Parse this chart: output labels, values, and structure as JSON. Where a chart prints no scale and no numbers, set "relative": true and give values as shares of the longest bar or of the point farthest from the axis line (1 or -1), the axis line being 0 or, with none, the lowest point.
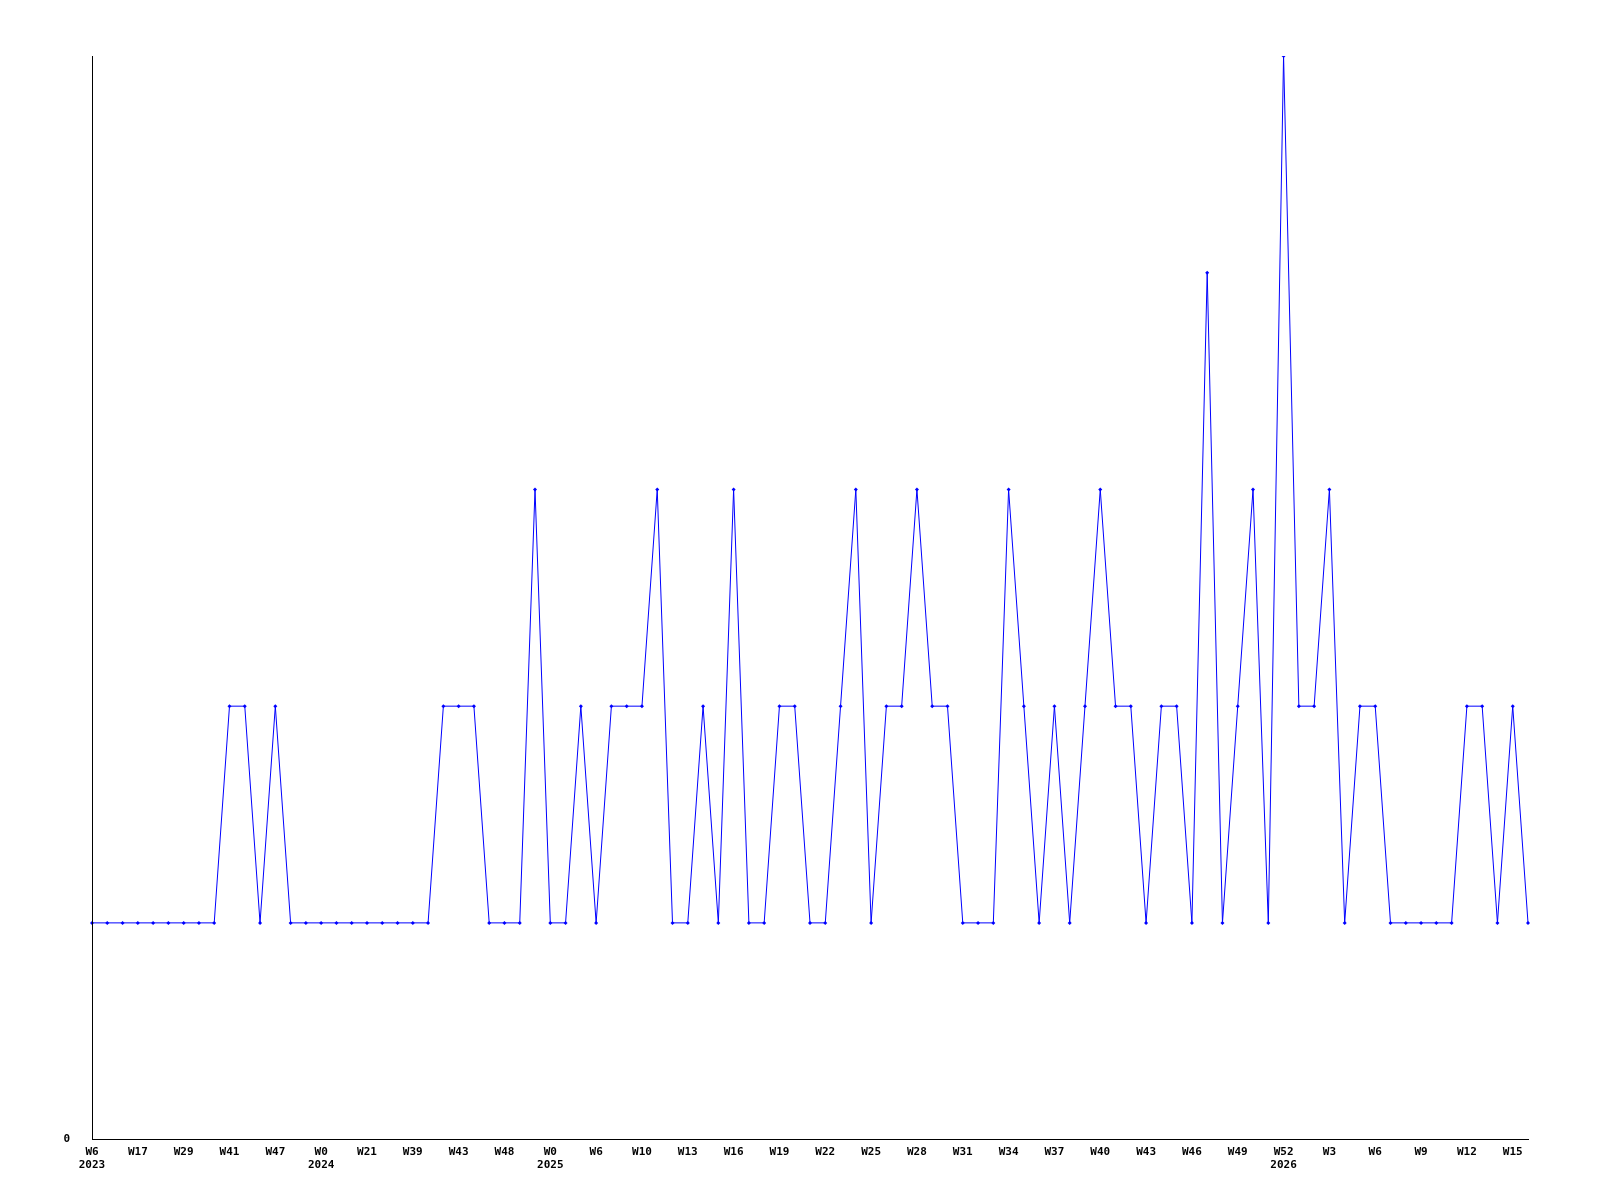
{
  "chart_data": {
    "type": "line",
    "relative": true,
    "categories": [
      "W6\n2023",
      null,
      null,
      "W17",
      null,
      null,
      "W29",
      null,
      null,
      "W41",
      null,
      null,
      "W47",
      null,
      null,
      "W0\n2024",
      null,
      null,
      "W21",
      null,
      null,
      "W39",
      null,
      null,
      "W43",
      null,
      null,
      "W48",
      null,
      null,
      "W0\n2025",
      null,
      null,
      "W6",
      null,
      null,
      "W10",
      null,
      null,
      "W13",
      null,
      null,
      "W16",
      null,
      null,
      "W19",
      null,
      null,
      "W22",
      null,
      null,
      "W25",
      null,
      null,
      "W28",
      null,
      null,
      "W31",
      null,
      null,
      "W34",
      null,
      null,
      "W37",
      null,
      null,
      "W40",
      null,
      null,
      "W43",
      null,
      null,
      "W46",
      null,
      null,
      "W49",
      null,
      null,
      "W52\n2026",
      null,
      null,
      "W3",
      null,
      null,
      "W6",
      null,
      null,
      "W9",
      null,
      null,
      "W12",
      null,
      null,
      "W15",
      null
    ],
    "series": [
      {
        "color": "#0000ff",
        "values": [
          0.2,
          0.2,
          0.2,
          0.2,
          0.2,
          0.2,
          0.2,
          0.2,
          0.2,
          0.4,
          0.4,
          0.2,
          0.4,
          0.2,
          0.2,
          0.2,
          0.2,
          0.2,
          0.2,
          0.2,
          0.2,
          0.2,
          0.2,
          0.4,
          0.4,
          0.4,
          0.2,
          0.2,
          0.2,
          0.6,
          0.2,
          0.2,
          0.4,
          0.2,
          0.4,
          0.4,
          0.4,
          0.6,
          0.2,
          0.2,
          0.4,
          0.2,
          0.6,
          0.2,
          0.2,
          0.4,
          0.4,
          0.2,
          0.2,
          0.4,
          0.6,
          0.2,
          0.4,
          0.4,
          0.6,
          0.4,
          0.4,
          0.2,
          0.2,
          0.2,
          0.6,
          0.4,
          0.2,
          0.4,
          0.2,
          0.4,
          0.6,
          0.4,
          0.4,
          0.2,
          0.4,
          0.4,
          0.2,
          0.8,
          0.2,
          0.4,
          0.6,
          0.2,
          1,
          0.4,
          0.4,
          0.6,
          0.2,
          0.4,
          0.4,
          0.2,
          0.2,
          0.2,
          0.2,
          0.2,
          0.4,
          0.4,
          0.2,
          0.4,
          0.2
        ]
      }
    ],
    "annotations": [
      "0"
    ],
    "marker": "diamond",
    "grid": false,
    "legend": false
  }
}
